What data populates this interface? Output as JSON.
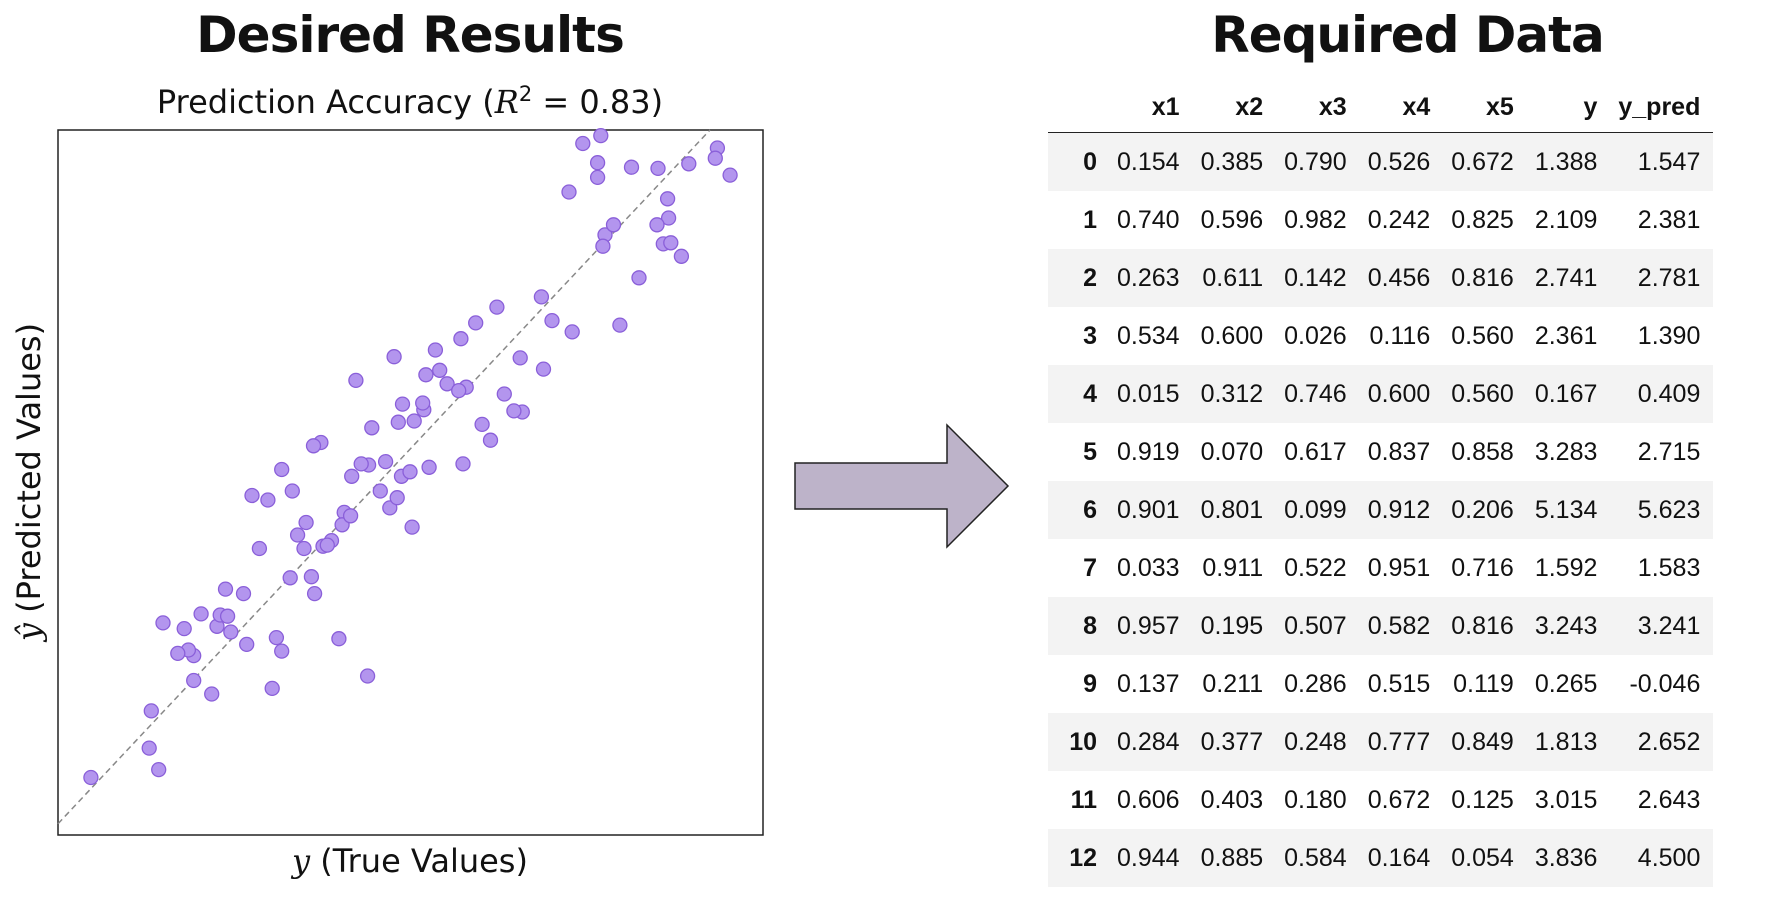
{
  "left_panel": {
    "heading": "Desired Results"
  },
  "right_panel": {
    "heading": "Required Data"
  },
  "chart_data": {
    "type": "scatter",
    "title_prefix": "Prediction Accuracy (",
    "title_math": "R",
    "title_sup": "2",
    "title_suffix": " = 0.83)",
    "xlabel_math": "y",
    "xlabel": " (True Values)",
    "ylabel_math": "ŷ",
    "ylabel": " (Predicted Values)",
    "xlim": [
      -0.4,
      6.25
    ],
    "ylim": [
      -0.5,
      5.75
    ],
    "diagonal": true,
    "grid": false,
    "points": [
      [
        -0.09,
        0.01
      ],
      [
        0.46,
        0.27
      ],
      [
        0.55,
        0.08
      ],
      [
        0.48,
        0.6
      ],
      [
        0.88,
        1.09
      ],
      [
        1.05,
        0.75
      ],
      [
        0.59,
        1.38
      ],
      [
        0.95,
        1.46
      ],
      [
        1.62,
        0.8
      ],
      [
        1.71,
        1.13
      ],
      [
        1.66,
        1.25
      ],
      [
        1.18,
        1.68
      ],
      [
        1.79,
        1.78
      ],
      [
        1.99,
        1.79
      ],
      [
        2.02,
        1.64
      ],
      [
        1.92,
        2.04
      ],
      [
        1.94,
        2.27
      ],
      [
        2.1,
        2.06
      ],
      [
        1.43,
        2.51
      ],
      [
        1.71,
        2.74
      ],
      [
        2.08,
        2.98
      ],
      [
        2.3,
        2.36
      ],
      [
        2.53,
        2.78
      ],
      [
        2.73,
        2.4
      ],
      [
        2.84,
        2.68
      ],
      [
        2.56,
        3.11
      ],
      [
        2.85,
        3.32
      ],
      [
        3.16,
        3.8
      ],
      [
        3.07,
        3.58
      ],
      [
        3.27,
        3.5
      ],
      [
        3.4,
        3.9
      ],
      [
        3.74,
        4.18
      ],
      [
        3.96,
        3.73
      ],
      [
        4.16,
        4.27
      ],
      [
        4.26,
        4.06
      ],
      [
        4.76,
        4.82
      ],
      [
        5.31,
        4.74
      ],
      [
        5.36,
        4.97
      ],
      [
        5.01,
        5.42
      ],
      [
        5.38,
        4.75
      ],
      [
        5.48,
        4.63
      ],
      [
        5.55,
        5.45
      ],
      [
        5.26,
        5.41
      ],
      [
        4.55,
        5.63
      ],
      [
        4.69,
        5.33
      ],
      [
        5.82,
        5.59
      ],
      [
        5.8,
        5.5
      ],
      [
        5.94,
        5.35
      ],
      [
        4.69,
        5.46
      ],
      [
        4.42,
        5.2
      ],
      [
        4.72,
        5.7
      ],
      [
        4.9,
        4.02
      ],
      [
        5.25,
        4.91
      ],
      [
        5.35,
        5.14
      ],
      [
        4.84,
        4.91
      ],
      [
        5.08,
        4.44
      ],
      [
        4.74,
        4.72
      ],
      [
        4.45,
        3.96
      ],
      [
        3.81,
        3.41
      ],
      [
        3.6,
        3.14
      ],
      [
        3.68,
        3.0
      ],
      [
        3.98,
        3.25
      ],
      [
        4.18,
        3.63
      ],
      [
        3.45,
        3.47
      ],
      [
        2.96,
        3.17
      ],
      [
        2.81,
        3.16
      ],
      [
        2.77,
        3.74
      ],
      [
        3.05,
        3.27
      ],
      [
        3.38,
        3.44
      ],
      [
        3.42,
        2.79
      ],
      [
        3.1,
        2.76
      ],
      [
        2.8,
        2.49
      ],
      [
        2.64,
        2.55
      ],
      [
        2.92,
        2.72
      ],
      [
        2.41,
        3.53
      ],
      [
        2.01,
        2.95
      ],
      [
        2.18,
        2.11
      ],
      [
        2.37,
        2.68
      ],
      [
        1.86,
        2.16
      ],
      [
        1.58,
        2.47
      ],
      [
        2.46,
        2.79
      ],
      [
        2.94,
        2.23
      ],
      [
        2.69,
        2.81
      ],
      [
        2.28,
        2.25
      ],
      [
        2.36,
        2.33
      ],
      [
        2.14,
        2.07
      ],
      [
        1.81,
        2.55
      ],
      [
        2.25,
        1.24
      ],
      [
        2.52,
        0.91
      ],
      [
        1.1,
        1.35
      ],
      [
        0.88,
        0.87
      ],
      [
        0.83,
        1.14
      ],
      [
        1.38,
        1.19
      ],
      [
        1.13,
        1.45
      ],
      [
        1.2,
        1.44
      ],
      [
        0.79,
        1.33
      ],
      [
        1.23,
        1.3
      ],
      [
        0.73,
        1.11
      ],
      [
        1.35,
        1.64
      ],
      [
        1.5,
        2.04
      ],
      [
        3.54,
        4.04
      ],
      [
        3.2,
        3.62
      ],
      [
        3.9,
        3.26
      ],
      [
        3.04,
        3.33
      ]
    ]
  },
  "table": {
    "columns": [
      "x1",
      "x2",
      "x3",
      "x4",
      "x5",
      "y",
      "y_pred"
    ],
    "rows": [
      {
        "index": "0",
        "cells": [
          "0.154",
          "0.385",
          "0.790",
          "0.526",
          "0.672",
          "1.388",
          "1.547"
        ]
      },
      {
        "index": "1",
        "cells": [
          "0.740",
          "0.596",
          "0.982",
          "0.242",
          "0.825",
          "2.109",
          "2.381"
        ]
      },
      {
        "index": "2",
        "cells": [
          "0.263",
          "0.611",
          "0.142",
          "0.456",
          "0.816",
          "2.741",
          "2.781"
        ]
      },
      {
        "index": "3",
        "cells": [
          "0.534",
          "0.600",
          "0.026",
          "0.116",
          "0.560",
          "2.361",
          "1.390"
        ]
      },
      {
        "index": "4",
        "cells": [
          "0.015",
          "0.312",
          "0.746",
          "0.600",
          "0.560",
          "0.167",
          "0.409"
        ]
      },
      {
        "index": "5",
        "cells": [
          "0.919",
          "0.070",
          "0.617",
          "0.837",
          "0.858",
          "3.283",
          "2.715"
        ]
      },
      {
        "index": "6",
        "cells": [
          "0.901",
          "0.801",
          "0.099",
          "0.912",
          "0.206",
          "5.134",
          "5.623"
        ]
      },
      {
        "index": "7",
        "cells": [
          "0.033",
          "0.911",
          "0.522",
          "0.951",
          "0.716",
          "1.592",
          "1.583"
        ]
      },
      {
        "index": "8",
        "cells": [
          "0.957",
          "0.195",
          "0.507",
          "0.582",
          "0.816",
          "3.243",
          "3.241"
        ]
      },
      {
        "index": "9",
        "cells": [
          "0.137",
          "0.211",
          "0.286",
          "0.515",
          "0.119",
          "0.265",
          "-0.046"
        ]
      },
      {
        "index": "10",
        "cells": [
          "0.284",
          "0.377",
          "0.248",
          "0.777",
          "0.849",
          "1.813",
          "2.652"
        ]
      },
      {
        "index": "11",
        "cells": [
          "0.606",
          "0.403",
          "0.180",
          "0.672",
          "0.125",
          "3.015",
          "2.643"
        ]
      },
      {
        "index": "12",
        "cells": [
          "0.944",
          "0.885",
          "0.584",
          "0.164",
          "0.054",
          "3.836",
          "4.500"
        ]
      }
    ]
  }
}
